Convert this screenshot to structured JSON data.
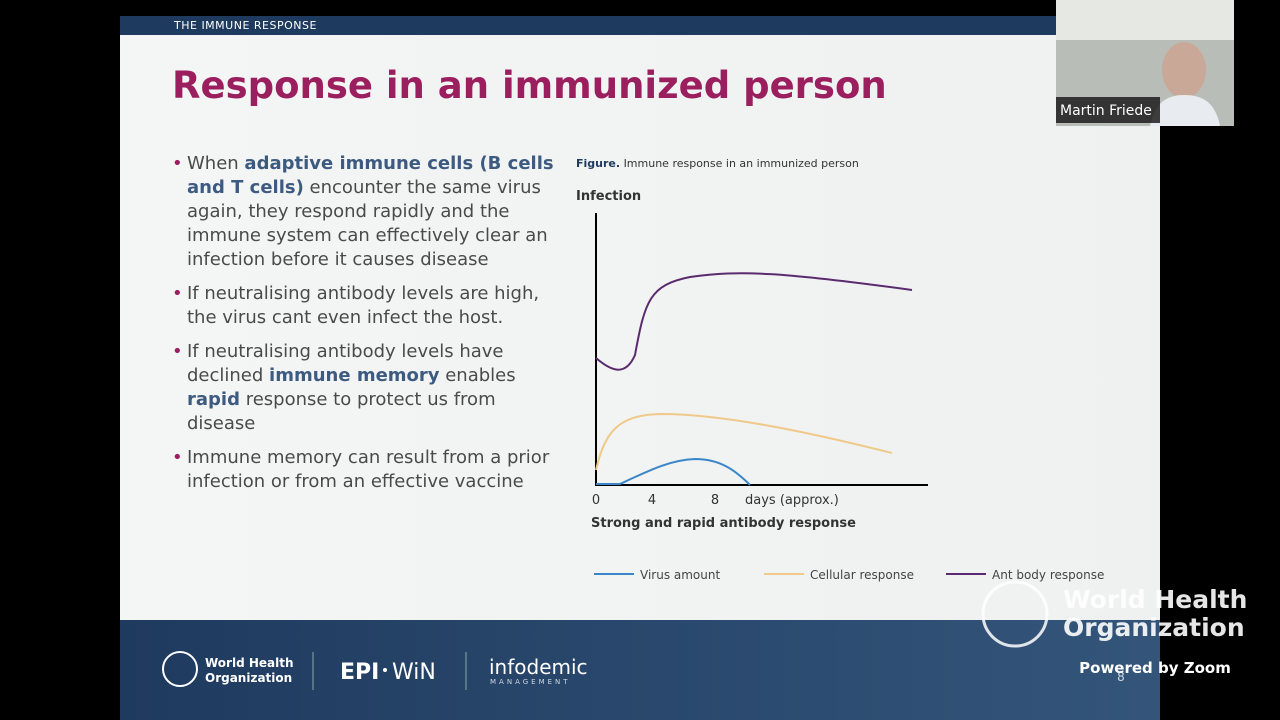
{
  "header": {
    "section": "THE IMMUNE RESPONSE",
    "title": "Response in an immunized person"
  },
  "bullets": [
    [
      {
        "text": "When "
      },
      {
        "text": "adaptive immune cells (B cells and T cells)",
        "strong": true
      },
      {
        "text": " encounter the same virus again, they respond rapidly and the immune system can effectively clear an infection before it causes disease"
      }
    ],
    [
      {
        "text": "If neutralising antibody levels are high, the virus cant even infect the host."
      }
    ],
    [
      {
        "text": "If neutralising antibody levels have declined "
      },
      {
        "text": "immune memory",
        "strong": true
      },
      {
        "text": " enables "
      },
      {
        "text": "rapid",
        "strong": true
      },
      {
        "text": " response to protect us from disease"
      }
    ],
    [
      {
        "text": "Immune memory can result from a prior infection or from an effective vaccine"
      }
    ]
  ],
  "figure": {
    "caption_label": "Figure.",
    "caption": "Immune response in an immunized person",
    "y_label": "Infection",
    "x_ticks": [
      "0",
      "4",
      "8"
    ],
    "x_unit": "days (approx.)",
    "x_label": "Strong and rapid antibody response",
    "legend": [
      {
        "name": "Virus amount",
        "color": "#3a86c8"
      },
      {
        "name": "Cellular response",
        "color": "#f0c98a"
      },
      {
        "name": "Ant body response",
        "color": "#5b2a6e"
      }
    ]
  },
  "footer": {
    "who": [
      "World Health",
      "Organization"
    ],
    "epi": "EPI",
    "win": "WiN",
    "infodemic": "infodemic",
    "management": "MANAGEMENT",
    "page": "8"
  },
  "overlay": {
    "watermark": [
      "World Health",
      "Organization"
    ],
    "zoom": "Powered by Zoom",
    "participant": "Martin Friede"
  }
}
